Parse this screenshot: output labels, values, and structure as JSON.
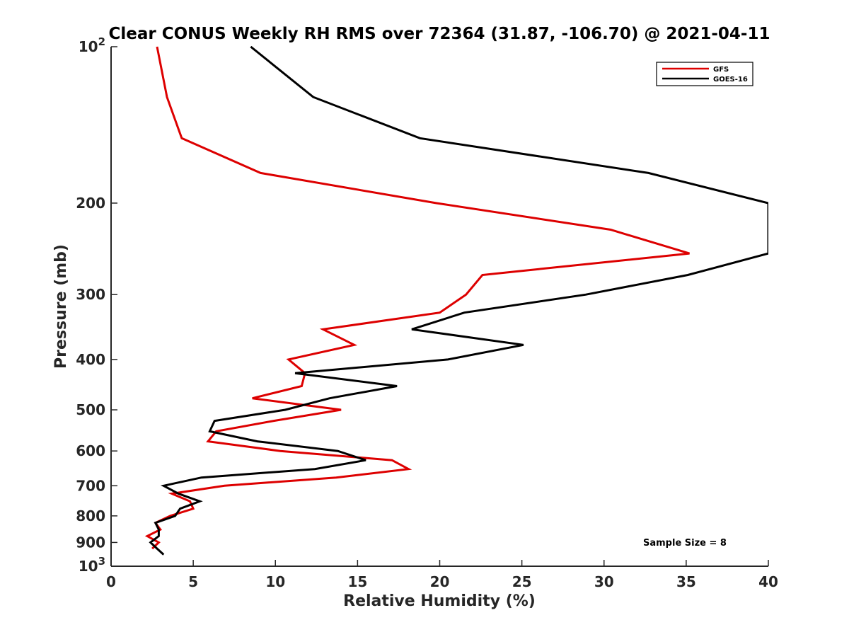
{
  "chart_data": {
    "type": "line",
    "title": "Clear CONUS Weekly RH RMS over 72364 (31.87, -106.70) @ 2021-04-11",
    "xlabel": "Relative Humidity (%)",
    "ylabel": "Pressure (mb)",
    "xlim": [
      0,
      40
    ],
    "ylim": [
      100,
      1000
    ],
    "y_scale": "log",
    "y_reversed": true,
    "grid": false,
    "legend_position": "top-right",
    "x_ticks": [
      0,
      5,
      10,
      15,
      20,
      25,
      30,
      35,
      40
    ],
    "x_tick_labels": [
      "0",
      "5",
      "10",
      "15",
      "20",
      "25",
      "30",
      "35",
      "40"
    ],
    "y_ticks": [
      100,
      200,
      300,
      400,
      500,
      600,
      700,
      800,
      900,
      1000
    ],
    "y_tick_labels": [
      "10^2",
      "200",
      "300",
      "400",
      "500",
      "600",
      "700",
      "800",
      "900",
      "10^3"
    ],
    "series": [
      {
        "name": "GFS",
        "color": "#dd0000",
        "points": [
          [
            2.8,
            100
          ],
          [
            3.4,
            125
          ],
          [
            4.3,
            150
          ],
          [
            9.1,
            175
          ],
          [
            19.8,
            200
          ],
          [
            30.4,
            225
          ],
          [
            35.2,
            250
          ],
          [
            22.6,
            275
          ],
          [
            21.6,
            300
          ],
          [
            20.0,
            325
          ],
          [
            12.9,
            350
          ],
          [
            14.8,
            375
          ],
          [
            10.8,
            400
          ],
          [
            11.8,
            425
          ],
          [
            11.6,
            450
          ],
          [
            8.6,
            475
          ],
          [
            14.0,
            500
          ],
          [
            9.9,
            525
          ],
          [
            6.4,
            550
          ],
          [
            5.9,
            575
          ],
          [
            10.3,
            600
          ],
          [
            17.1,
            625
          ],
          [
            18.1,
            650
          ],
          [
            13.7,
            675
          ],
          [
            6.9,
            700
          ],
          [
            3.7,
            725
          ],
          [
            4.8,
            750
          ],
          [
            5.0,
            775
          ],
          [
            3.6,
            800
          ],
          [
            2.7,
            825
          ],
          [
            3.0,
            850
          ],
          [
            2.2,
            875
          ],
          [
            2.9,
            900
          ],
          [
            2.5,
            925
          ]
        ]
      },
      {
        "name": "GOES-16",
        "color": "#000000",
        "points": [
          [
            8.5,
            100
          ],
          [
            12.3,
            125
          ],
          [
            18.8,
            150
          ],
          [
            32.7,
            175
          ],
          [
            40.0,
            200
          ],
          [
            40.0,
            250
          ],
          [
            35.1,
            275
          ],
          [
            28.9,
            300
          ],
          [
            21.5,
            325
          ],
          [
            18.3,
            350
          ],
          [
            25.1,
            375
          ],
          [
            20.5,
            400
          ],
          [
            11.2,
            425
          ],
          [
            17.4,
            450
          ],
          [
            13.3,
            475
          ],
          [
            10.6,
            500
          ],
          [
            6.3,
            525
          ],
          [
            6.0,
            550
          ],
          [
            8.9,
            575
          ],
          [
            13.8,
            600
          ],
          [
            15.5,
            625
          ],
          [
            12.4,
            650
          ],
          [
            5.5,
            675
          ],
          [
            3.2,
            700
          ],
          [
            4.1,
            725
          ],
          [
            5.4,
            750
          ],
          [
            4.2,
            775
          ],
          [
            3.9,
            800
          ],
          [
            2.7,
            825
          ],
          [
            2.9,
            850
          ],
          [
            2.9,
            875
          ],
          [
            2.4,
            900
          ],
          [
            2.8,
            925
          ],
          [
            3.2,
            950
          ]
        ]
      }
    ],
    "annotations": [
      "Sample Size = 8"
    ]
  }
}
